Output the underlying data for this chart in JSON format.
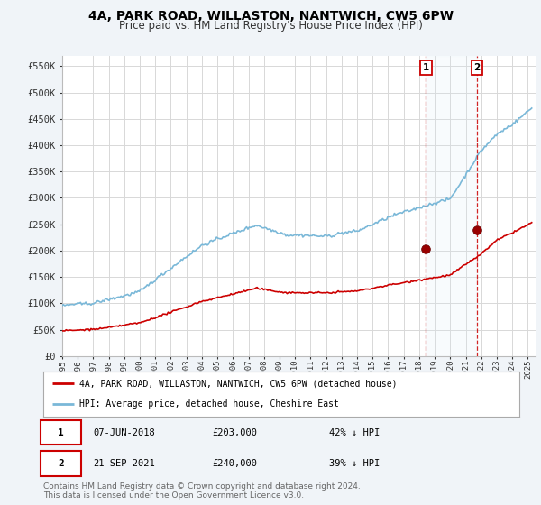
{
  "title": "4A, PARK ROAD, WILLASTON, NANTWICH, CW5 6PW",
  "subtitle": "Price paid vs. HM Land Registry's House Price Index (HPI)",
  "ylabel_ticks": [
    "£0",
    "£50K",
    "£100K",
    "£150K",
    "£200K",
    "£250K",
    "£300K",
    "£350K",
    "£400K",
    "£450K",
    "£500K",
    "£550K"
  ],
  "ytick_values": [
    0,
    50000,
    100000,
    150000,
    200000,
    250000,
    300000,
    350000,
    400000,
    450000,
    500000,
    550000
  ],
  "ylim": [
    0,
    570000
  ],
  "xlim_start": 1995.0,
  "xlim_end": 2025.5,
  "hpi_color": "#7ab8d8",
  "hpi_fill_color": "#dceef7",
  "price_color": "#cc0000",
  "bg_color": "#f0f4f8",
  "plot_bg": "#ffffff",
  "grid_color": "#d8d8d8",
  "legend_label_price": "4A, PARK ROAD, WILLASTON, NANTWICH, CW5 6PW (detached house)",
  "legend_label_hpi": "HPI: Average price, detached house, Cheshire East",
  "event1_date": 2018.44,
  "event1_price": 203000,
  "event2_date": 2021.72,
  "event2_price": 240000,
  "table_data": [
    [
      "1",
      "07-JUN-2018",
      "£203,000",
      "42% ↓ HPI"
    ],
    [
      "2",
      "21-SEP-2021",
      "£240,000",
      "39% ↓ HPI"
    ]
  ],
  "footer": "Contains HM Land Registry data © Crown copyright and database right 2024.\nThis data is licensed under the Open Government Licence v3.0.",
  "title_fontsize": 10,
  "subtitle_fontsize": 8.5,
  "tick_fontsize": 7.5,
  "footer_fontsize": 6.5
}
